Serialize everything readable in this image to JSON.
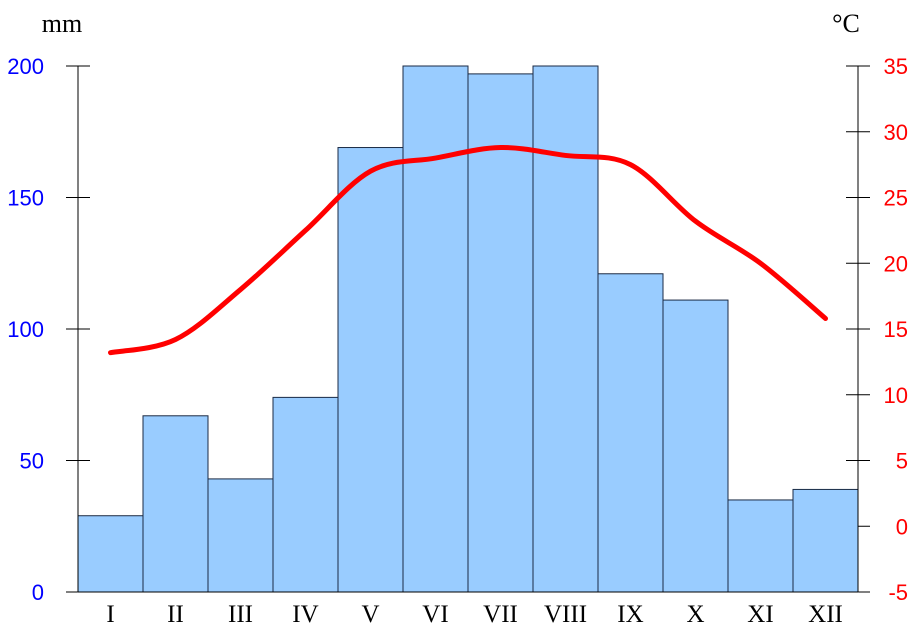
{
  "chart_data": {
    "type": "bar+line",
    "title": "",
    "categories": [
      "I",
      "II",
      "III",
      "IV",
      "V",
      "VI",
      "VII",
      "VIII",
      "IX",
      "X",
      "XI",
      "XII"
    ],
    "series": [
      {
        "type": "bar",
        "axis": "left",
        "values": [
          29,
          67,
          43,
          74,
          169,
          200,
          197,
          200,
          121,
          111,
          35,
          39
        ]
      },
      {
        "type": "line",
        "axis": "right",
        "values": [
          13.2,
          14.2,
          18.0,
          22.5,
          27.0,
          28.0,
          28.8,
          28.2,
          27.5,
          23.2,
          20.0,
          15.8
        ]
      }
    ],
    "left_axis": {
      "label": "mm",
      "ylim": [
        0,
        200
      ],
      "ticks": [
        "0",
        "50",
        "100",
        "150",
        "200"
      ]
    },
    "right_axis": {
      "label": "°C",
      "ylim": [
        -5,
        35
      ],
      "ticks": [
        "-5",
        "0",
        "5",
        "10",
        "15",
        "20",
        "25",
        "30",
        "35"
      ]
    },
    "grid": false,
    "legend": "none",
    "colors": {
      "bar_fill": "#99ccff",
      "bar_stroke": "#1a2a44",
      "line": "#ff0000",
      "left_axis_text": "#0000ff",
      "right_axis_text": "#ff0000",
      "axis_line": "#000000"
    }
  }
}
